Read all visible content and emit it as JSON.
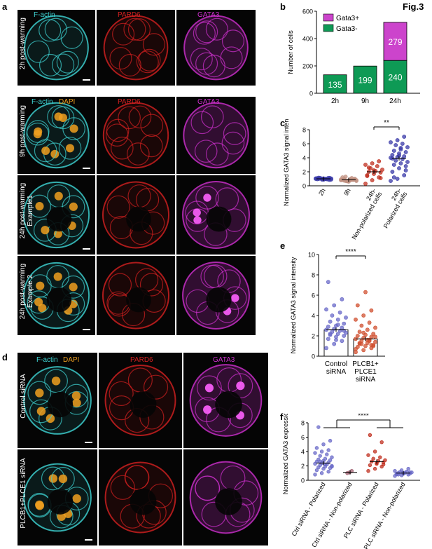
{
  "figure_label": "Fig.3",
  "panels": {
    "a": {
      "label": "a",
      "header_row1": {
        "ch1": "F-actin",
        "ch2": "PARD6",
        "ch3": "GATA3"
      },
      "header_row2": {
        "ch1a": "F-actin",
        "ch1b": "DAPI",
        "ch2": "PARD6",
        "ch3": "GATA3"
      },
      "rows": [
        "2h post-warming",
        "9h post-warming",
        "24h post-warming\nExample1",
        "24h post-warming\nExample 2"
      ],
      "row_lines": [
        [
          "2h post-warming"
        ],
        [
          "9h post-warming"
        ],
        [
          "24h post-warming",
          "Example1"
        ],
        [
          "24h post-warming",
          "Example 2"
        ]
      ]
    },
    "d": {
      "label": "d",
      "header": {
        "ch1a": "F-actin",
        "ch1b": "DAPI",
        "ch2": "PARD6",
        "ch3": "GATA3"
      },
      "rows": [
        "Control siRNA",
        "PLCB1+PLCE1 siRNA"
      ]
    },
    "b": {
      "label": "b"
    },
    "c": {
      "label": "c"
    },
    "e": {
      "label": "e"
    },
    "f": {
      "label": "f"
    }
  },
  "colors": {
    "cyan": "#3fd6d6",
    "red": "#d42020",
    "magenta": "#d030d0",
    "orange": "#f0a020",
    "gata_pos": "#cc44cc",
    "gata_neg": "#0e9a55",
    "blue_dot": "#3a3aa8",
    "red_dot": "#c03020"
  },
  "chart_data": [
    {
      "id": "b",
      "type": "bar",
      "stacked": true,
      "categories": [
        "2h",
        "9h",
        "24h"
      ],
      "series": [
        {
          "name": "Gata3+",
          "values": [
            0,
            0,
            279
          ],
          "color": "#cc44cc"
        },
        {
          "name": "Gata3-",
          "values": [
            135,
            199,
            240
          ],
          "color": "#0e9a55"
        }
      ],
      "data_labels": [
        "135",
        "199",
        "240",
        "279"
      ],
      "ylabel": "Number of cells",
      "ylim": [
        0,
        600
      ],
      "yticks": [
        0,
        200,
        400,
        600
      ],
      "legend": "top-left"
    },
    {
      "id": "c",
      "type": "scatter",
      "categories": [
        "2h",
        "9h",
        "24h-\nNon-polarized cells",
        "24h-\nPolarized cells"
      ],
      "category_lines": [
        [
          "2h"
        ],
        [
          "9h"
        ],
        [
          "24h-",
          "Non-polarized cells"
        ],
        [
          "24h-",
          "Polarized cells"
        ]
      ],
      "ylabel": "Normalized GATA3 signal intensity",
      "ylim": [
        0,
        8
      ],
      "yticks": [
        0,
        2,
        4,
        6,
        8
      ],
      "means": [
        1.0,
        0.85,
        2.0,
        3.9
      ],
      "annotation": "**",
      "groups": [
        {
          "name": "2h",
          "values": [
            1.0,
            0.9,
            1.1,
            0.95,
            1.05,
            0.85,
            1.15,
            1.0,
            0.9,
            1.1,
            0.95,
            1.05,
            1.0,
            0.92,
            1.08,
            0.88,
            1.12,
            1.0,
            0.97,
            1.03
          ],
          "color": "#3a3aa8"
        },
        {
          "name": "9h",
          "values": [
            0.8,
            0.7,
            0.9,
            0.85,
            0.6,
            1.0,
            0.75,
            0.95,
            0.8,
            0.7,
            1.1,
            0.9,
            0.65,
            0.85,
            1.2,
            0.75,
            0.9,
            1.0,
            0.8,
            0.7,
            1.3,
            0.85
          ],
          "color": "#c09080"
        },
        {
          "name": "24h-Non-polarized",
          "values": [
            0.3,
            0.8,
            1.2,
            1.5,
            1.7,
            1.9,
            2.0,
            2.1,
            2.3,
            2.5,
            2.8,
            3.0,
            3.2,
            3.5,
            1.4,
            2.2,
            1.1,
            2.6
          ],
          "color": "#c03020"
        },
        {
          "name": "24h-Polarized",
          "values": [
            0.7,
            1.0,
            1.5,
            2.0,
            2.5,
            2.8,
            3.0,
            3.2,
            3.4,
            3.6,
            3.8,
            4.0,
            4.1,
            4.2,
            4.4,
            4.6,
            4.8,
            5.0,
            5.2,
            5.5,
            5.8,
            6.0,
            6.2,
            6.5,
            7.0,
            3.9,
            4.3,
            2.2,
            1.2,
            5.4
          ],
          "color": "#3a3aa8"
        }
      ]
    },
    {
      "id": "e",
      "type": "bar+scatter",
      "categories": [
        "Control\nsiRNA",
        "PLCB1+\nPLCE1\nsiRNA"
      ],
      "category_lines": [
        [
          "Control",
          "siRNA"
        ],
        [
          "PLCB1+",
          "PLCE1",
          "siRNA"
        ]
      ],
      "values": [
        2.6,
        1.7
      ],
      "ylabel": "Normalized GATA3 signal intensity",
      "ylim": [
        0,
        10
      ],
      "yticks": [
        0,
        2,
        4,
        6,
        8,
        10
      ],
      "annotation": "****",
      "groups": [
        {
          "name": "Control siRNA",
          "values": [
            0.8,
            1.2,
            1.5,
            1.7,
            1.9,
            2.0,
            2.1,
            2.2,
            2.3,
            2.4,
            2.5,
            2.6,
            2.7,
            2.8,
            2.9,
            3.0,
            3.2,
            3.4,
            3.6,
            3.8,
            4.0,
            4.3,
            4.6,
            5.0,
            5.6,
            7.3,
            1.6,
            2.5,
            2.2,
            3.1
          ],
          "color": "#6a6ac8"
        },
        {
          "name": "PLCB1+PLCE1 siRNA",
          "values": [
            0.4,
            0.6,
            0.8,
            0.9,
            1.0,
            1.1,
            1.2,
            1.3,
            1.4,
            1.5,
            1.6,
            1.7,
            1.8,
            1.9,
            2.0,
            2.1,
            2.2,
            2.4,
            2.6,
            2.8,
            3.0,
            3.3,
            3.6,
            4.0,
            4.5,
            5.0,
            6.3,
            1.0,
            1.3,
            1.6,
            1.9,
            1.2,
            1.5,
            0.7,
            2.3,
            1.1
          ],
          "color": "#d05030"
        }
      ]
    },
    {
      "id": "f",
      "type": "scatter",
      "categories": [
        "Ctrl siRNA - Polarized",
        "Ctrl siRNA - Non-polarized",
        "PLC siRNA - Polarized",
        "PLC siRNA - Non-polarized"
      ],
      "ylabel": "Normalized GATA3 expression",
      "ylim": [
        0,
        8
      ],
      "yticks": [
        0,
        2,
        4,
        6,
        8
      ],
      "means": [
        2.4,
        1.1,
        2.6,
        1.0
      ],
      "annotation": "****",
      "groups": [
        {
          "name": "Ctrl siRNA - Polarized",
          "values": [
            0.8,
            1.0,
            1.2,
            1.4,
            1.6,
            1.7,
            1.8,
            1.9,
            2.0,
            2.1,
            2.2,
            2.3,
            2.4,
            2.5,
            2.6,
            2.7,
            2.8,
            2.9,
            3.0,
            3.2,
            3.4,
            3.6,
            3.8,
            4.0,
            4.2,
            4.5,
            5.0,
            5.5,
            7.4,
            2.2,
            1.9,
            2.6
          ],
          "color": "#6a6ac8"
        },
        {
          "name": "Ctrl siRNA - Non-polarized",
          "values": [
            1.0,
            1.1,
            1.3
          ],
          "color": "#a06070"
        },
        {
          "name": "PLC siRNA - Polarized",
          "values": [
            1.3,
            1.6,
            1.9,
            2.1,
            2.3,
            2.5,
            2.6,
            2.7,
            2.8,
            3.0,
            3.2,
            3.5,
            4.0,
            5.3,
            6.3,
            2.4,
            2.2
          ],
          "color": "#c03020"
        },
        {
          "name": "PLC siRNA - Non-polarized",
          "values": [
            0.6,
            0.7,
            0.8,
            0.85,
            0.9,
            0.95,
            1.0,
            1.05,
            1.1,
            1.15,
            1.2,
            1.3,
            1.4,
            1.6,
            0.9,
            1.0,
            1.1,
            0.8
          ],
          "color": "#6a6ac8"
        }
      ]
    }
  ]
}
